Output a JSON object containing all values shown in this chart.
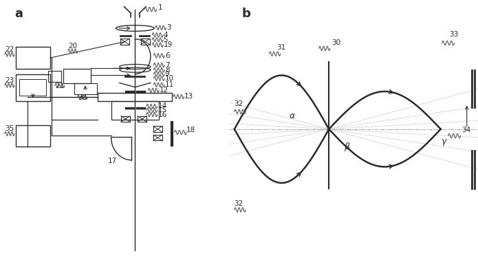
{
  "bg_color": "#ffffff",
  "line_color": "#2a2a2a",
  "label_color": "#2a2a2a",
  "panel_a_label": "a",
  "panel_b_label": "b",
  "font_size_label": 13,
  "wavy_color": "#666666"
}
